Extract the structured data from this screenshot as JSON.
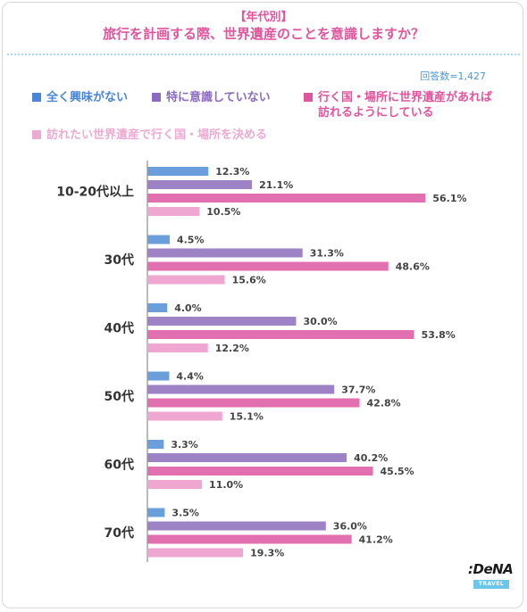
{
  "header": {
    "subtitle": "【年代別】",
    "title": "旅行を計画する際、世界遺産のことを意識しますか？",
    "respondents": "回答数=1,427"
  },
  "colors": {
    "accent": "#e0559e",
    "respondents": "#4a9ad8",
    "divider": "#a9d8f0"
  },
  "logo": {
    "text": ":DeNA",
    "sub": "TRAVEL"
  },
  "chart_data": {
    "type": "bar",
    "orientation": "horizontal",
    "categories": [
      "10-20代以上",
      "30代",
      "40代",
      "50代",
      "60代",
      "70代"
    ],
    "series": [
      {
        "name": "全く興味がない",
        "color": "#6a9fdc",
        "legend_color": "#4a86d8",
        "values": [
          12.3,
          4.5,
          4.0,
          4.4,
          3.3,
          3.5
        ]
      },
      {
        "name": "特に意識していない",
        "color": "#9d82c6",
        "legend_color": "#8a6bbf",
        "values": [
          21.1,
          31.3,
          30.0,
          37.7,
          40.2,
          36.0
        ]
      },
      {
        "name": "行く国・場所に世界遺産があれば訪れるようにしている",
        "color": "#e26faf",
        "legend_color": "#e0559e",
        "values": [
          56.1,
          48.6,
          53.8,
          42.8,
          45.5,
          41.2
        ]
      },
      {
        "name": "訪れたい世界遺産で行く国・場所を決める",
        "color": "#efa6d1",
        "legend_color": "#eeaad2",
        "values": [
          10.5,
          15.6,
          12.2,
          15.1,
          11.0,
          19.3
        ]
      }
    ],
    "legend_lines": [
      [
        "全く興味がない"
      ],
      [
        "特に意識していない"
      ],
      [
        "行く国・場所に世界遺産があれば",
        "訪れるようにしている"
      ],
      [
        "訪れたい世界遺産で行く国・場所を決める"
      ]
    ],
    "value_suffix": "%",
    "xlim": [
      0,
      100
    ],
    "grid": false,
    "legend_position": "top"
  }
}
